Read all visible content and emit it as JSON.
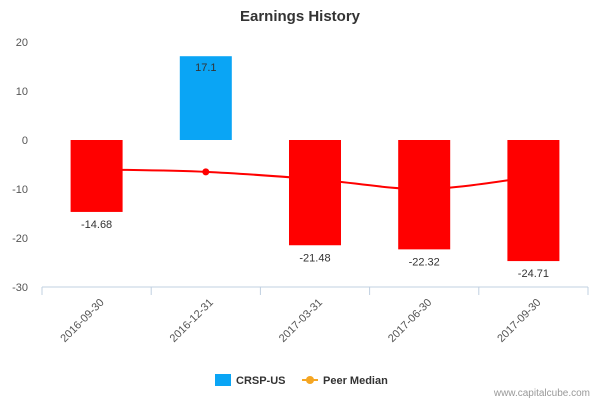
{
  "chart_data": {
    "type": "bar",
    "title": "Earnings History",
    "categories": [
      "2016-09-30",
      "2016-12-31",
      "2017-03-31",
      "2017-06-30",
      "2017-09-30"
    ],
    "series": [
      {
        "name": "CRSP-US",
        "type": "bar",
        "values": [
          -14.68,
          17.1,
          -21.48,
          -22.32,
          -24.71
        ],
        "labels": [
          "-14.68",
          "17.1",
          "-21.48",
          "-22.32",
          "-24.71"
        ],
        "colors": [
          "#ff0000",
          "#0aa5f5",
          "#ff0000",
          "#ff0000",
          "#ff0000"
        ]
      },
      {
        "name": "Peer Median",
        "type": "line",
        "values": [
          -6.0,
          -6.5,
          -8.0,
          -10.0,
          -7.5
        ],
        "color": "#ff0000",
        "legend_color": "#f5a623"
      }
    ],
    "ylim": [
      -30,
      20
    ],
    "yticks": [
      20,
      10,
      0,
      -10,
      -20,
      -30
    ],
    "legend_position": "bottom-center",
    "grid": false
  },
  "credit": "www.capitalcube.com"
}
